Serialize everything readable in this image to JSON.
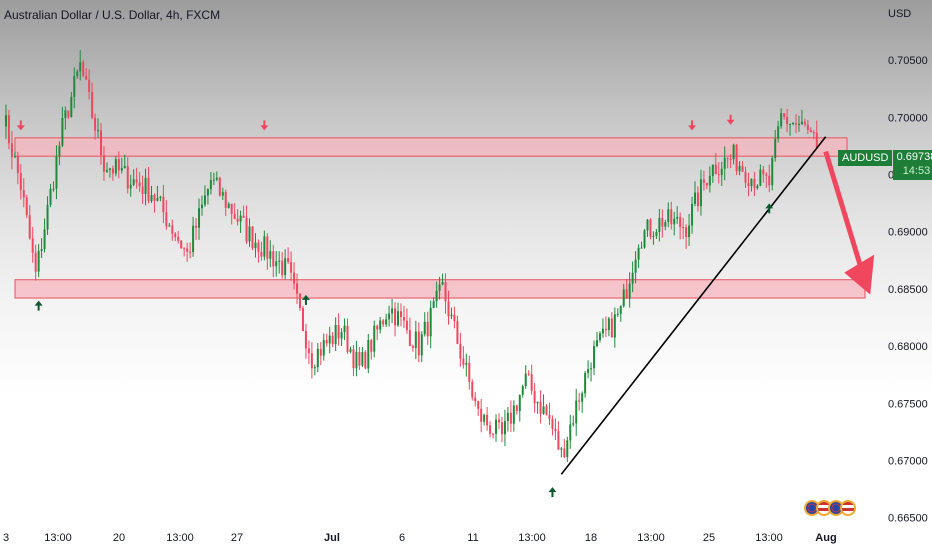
{
  "header": {
    "title": "Australian Dollar / U.S. Dollar, 4h, FXCM",
    "currency": "USD"
  },
  "price_badge": {
    "symbol": "AUDUSD",
    "price": "0.69738",
    "timer": "14:53",
    "color": "#1e7d37"
  },
  "colors": {
    "up_candle": "#1e8a3c",
    "down_candle": "#f0475f",
    "zone_fill": "#f7b6bd",
    "zone_border": "#e8505f",
    "arrow_up": "#0b5a32",
    "arrow_down": "#f0475f",
    "trendline": "#000000"
  },
  "icons": [
    "flag-au-icon",
    "flag-us-icon",
    "flag-au-icon",
    "flag-us-icon"
  ],
  "chart_data": {
    "type": "candlestick",
    "title": "Australian Dollar / U.S. Dollar, 4h, FXCM",
    "xlabel": "",
    "ylabel": "",
    "ylim": [
      0.6648,
      0.7085
    ],
    "y_ticks": [
      "0.70500",
      "0.70000",
      "0.69500",
      "0.69000",
      "0.68500",
      "0.68000",
      "0.67500",
      "0.67000",
      "0.66500"
    ],
    "y_tick_values": [
      0.705,
      0.7,
      0.695,
      0.69,
      0.685,
      0.68,
      0.675,
      0.67,
      0.665
    ],
    "x_ticks": [
      {
        "label": "3",
        "bold": false
      },
      {
        "label": "13:00",
        "bold": false
      },
      {
        "label": "20",
        "bold": false
      },
      {
        "label": "13:00",
        "bold": false
      },
      {
        "label": "27",
        "bold": false
      },
      {
        "label": "Jul",
        "bold": true
      },
      {
        "label": "6",
        "bold": false
      },
      {
        "label": "11",
        "bold": false
      },
      {
        "label": "13:00",
        "bold": false
      },
      {
        "label": "18",
        "bold": false
      },
      {
        "label": "13:00",
        "bold": false
      },
      {
        "label": "25",
        "bold": false
      },
      {
        "label": "13:00",
        "bold": false
      },
      {
        "label": "Aug",
        "bold": true
      }
    ],
    "anchors": [
      {
        "bar": 0,
        "price": 0.7003
      },
      {
        "bar": 6,
        "price": 0.694
      },
      {
        "bar": 11,
        "price": 0.6862
      },
      {
        "bar": 20,
        "price": 0.699
      },
      {
        "bar": 26,
        "price": 0.7045
      },
      {
        "bar": 34,
        "price": 0.696
      },
      {
        "bar": 50,
        "price": 0.6935
      },
      {
        "bar": 62,
        "price": 0.688
      },
      {
        "bar": 70,
        "price": 0.6945
      },
      {
        "bar": 82,
        "price": 0.69
      },
      {
        "bar": 96,
        "price": 0.6865
      },
      {
        "bar": 104,
        "price": 0.679
      },
      {
        "bar": 114,
        "price": 0.6815
      },
      {
        "bar": 120,
        "price": 0.678
      },
      {
        "bar": 130,
        "price": 0.6835
      },
      {
        "bar": 140,
        "price": 0.68
      },
      {
        "bar": 148,
        "price": 0.685
      },
      {
        "bar": 160,
        "price": 0.674
      },
      {
        "bar": 168,
        "price": 0.672
      },
      {
        "bar": 176,
        "price": 0.677
      },
      {
        "bar": 184,
        "price": 0.6735
      },
      {
        "bar": 188,
        "price": 0.6705
      },
      {
        "bar": 198,
        "price": 0.679
      },
      {
        "bar": 208,
        "price": 0.683
      },
      {
        "bar": 214,
        "price": 0.6895
      },
      {
        "bar": 222,
        "price": 0.691
      },
      {
        "bar": 230,
        "price": 0.6905
      },
      {
        "bar": 238,
        "price": 0.6955
      },
      {
        "bar": 246,
        "price": 0.6965
      },
      {
        "bar": 252,
        "price": 0.6948
      },
      {
        "bar": 258,
        "price": 0.6942
      },
      {
        "bar": 262,
        "price": 0.7
      },
      {
        "bar": 270,
        "price": 0.699
      },
      {
        "bar": 274,
        "price": 0.6974
      }
    ],
    "zones": [
      {
        "top": 0.6982,
        "bottom": 0.6966
      },
      {
        "top": 0.6858,
        "bottom": 0.6842
      }
    ],
    "trendline": {
      "from": {
        "bar": 188,
        "price": 0.6688
      },
      "to": {
        "bar": 277,
        "price": 0.6983
      }
    },
    "projection_arrow": {
      "from": {
        "bar": 277,
        "price": 0.697
      },
      "to": {
        "bar": 292,
        "price": 0.6845
      }
    },
    "up_arrows": [
      {
        "bar": 12,
        "price": 0.6845
      },
      {
        "bar": 102,
        "price": 0.685
      },
      {
        "bar": 185,
        "price": 0.6682
      },
      {
        "bar": 258,
        "price": 0.693
      }
    ],
    "down_arrows": [
      {
        "bar": 6,
        "price": 0.6985
      },
      {
        "bar": 88,
        "price": 0.6985
      },
      {
        "bar": 232,
        "price": 0.6985
      },
      {
        "bar": 245,
        "price": 0.699
      }
    ]
  }
}
